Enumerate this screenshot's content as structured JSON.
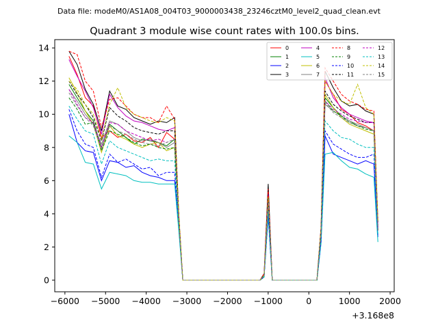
{
  "chart_data": {
    "type": "line",
    "suptitle": "Data file: modeM0/AS1A08_004T03_9000003438_23246cztM0_level2_quad_clean.evt",
    "title": "Quadrant 3 module wise count rates with 100.0s bins.",
    "xlabel": "",
    "ylabel": "",
    "x_offset_label": "+3.168e8",
    "xlim": [
      -6250,
      2100
    ],
    "ylim": [
      -0.7,
      14.5
    ],
    "xticks": [
      -6000,
      -5000,
      -4000,
      -3000,
      -2000,
      -1000,
      0,
      1000,
      2000
    ],
    "yticks": [
      0,
      2,
      4,
      6,
      8,
      10,
      12,
      14
    ],
    "grid": false,
    "legend_placement": "top-right",
    "x": [
      -5900,
      -5700,
      -5500,
      -5300,
      -5100,
      -4900,
      -4700,
      -4500,
      -4300,
      -4100,
      -3900,
      -3700,
      -3500,
      -3300,
      -3200,
      -3100,
      -1200,
      -1100,
      -1000,
      -900,
      200,
      300,
      400,
      600,
      800,
      1000,
      1200,
      1400,
      1600,
      1700
    ],
    "series": [
      {
        "name": "0",
        "color": "#ff0000",
        "dash": false,
        "values": [
          13.5,
          12.4,
          11.0,
          10.5,
          8.6,
          9.0,
          8.6,
          8.8,
          8.4,
          8.3,
          8.6,
          8.0,
          8.9,
          8.5,
          3.5,
          0,
          0,
          0.3,
          5.0,
          0,
          0,
          3.0,
          12.0,
          11.2,
          10.3,
          10.0,
          9.5,
          9.3,
          9.0,
          3.0
        ]
      },
      {
        "name": "1",
        "color": "#008000",
        "dash": false,
        "values": [
          11.8,
          11.0,
          10.2,
          9.6,
          8.0,
          9.4,
          9.0,
          8.6,
          8.2,
          8.5,
          8.4,
          8.3,
          8.1,
          8.5,
          3.5,
          0,
          0,
          0.2,
          4.6,
          0,
          0,
          2.8,
          11.0,
          10.4,
          9.9,
          9.6,
          9.3,
          9.2,
          9.0,
          3.0
        ]
      },
      {
        "name": "2",
        "color": "#0000ff",
        "dash": false,
        "values": [
          10.0,
          8.3,
          7.8,
          7.7,
          6.0,
          7.2,
          7.1,
          6.8,
          6.9,
          6.5,
          6.3,
          6.2,
          6.0,
          6.0,
          3.2,
          0,
          0,
          0.2,
          4.2,
          0,
          0,
          2.3,
          8.7,
          7.6,
          7.4,
          7.2,
          7.0,
          7.2,
          7.0,
          2.6
        ]
      },
      {
        "name": "3",
        "color": "#000000",
        "dash": false,
        "values": [
          13.8,
          13.0,
          11.5,
          10.6,
          9.0,
          11.4,
          10.5,
          10.3,
          9.8,
          9.6,
          9.4,
          9.6,
          9.5,
          9.8,
          4.0,
          0,
          0,
          0.4,
          5.8,
          0,
          0,
          3.2,
          12.6,
          11.6,
          10.8,
          10.5,
          10.6,
          10.2,
          10.0,
          3.5
        ]
      },
      {
        "name": "4",
        "color": "#bf00bf",
        "dash": false,
        "values": [
          13.3,
          12.3,
          11.4,
          10.4,
          8.8,
          11.2,
          10.4,
          9.9,
          9.6,
          9.5,
          9.3,
          9.1,
          9.0,
          9.2,
          3.8,
          0,
          0,
          0.3,
          5.2,
          0,
          0,
          3.0,
          12.2,
          11.0,
          10.4,
          10.0,
          9.8,
          9.6,
          9.5,
          3.3
        ]
      },
      {
        "name": "5",
        "color": "#00bfbf",
        "dash": false,
        "values": [
          8.7,
          8.3,
          7.1,
          7.0,
          5.5,
          6.5,
          6.4,
          6.3,
          6.0,
          5.9,
          5.9,
          5.8,
          5.8,
          5.8,
          3.0,
          0,
          0,
          0.2,
          3.8,
          0,
          0,
          2.2,
          7.6,
          7.7,
          7.2,
          6.8,
          6.7,
          6.4,
          6.2,
          2.3
        ]
      },
      {
        "name": "6",
        "color": "#bfbf00",
        "dash": false,
        "values": [
          12.2,
          11.3,
          10.2,
          9.4,
          7.7,
          9.3,
          8.7,
          8.5,
          8.2,
          8.0,
          8.2,
          8.3,
          7.8,
          8.0,
          3.5,
          0,
          0,
          0.3,
          4.6,
          0,
          0,
          2.8,
          11.2,
          10.4,
          9.8,
          9.4,
          9.2,
          9.0,
          8.8,
          3.1
        ]
      },
      {
        "name": "7",
        "color": "#808080",
        "dash": false,
        "values": [
          11.5,
          10.8,
          10.0,
          9.4,
          8.2,
          9.6,
          9.4,
          9.0,
          8.6,
          8.4,
          8.5,
          8.3,
          8.0,
          8.3,
          3.6,
          0,
          0,
          0.3,
          4.8,
          0,
          0,
          2.9,
          10.6,
          10.2,
          9.9,
          9.6,
          9.4,
          9.2,
          9.0,
          3.1
        ]
      },
      {
        "name": "8",
        "color": "#ff0000",
        "dash": true,
        "values": [
          13.8,
          13.6,
          12.0,
          11.4,
          9.2,
          10.9,
          11.0,
          10.5,
          10.0,
          9.8,
          9.8,
          9.5,
          10.5,
          9.7,
          4.0,
          0,
          0,
          0.4,
          5.5,
          0,
          0,
          3.2,
          12.8,
          12.0,
          11.2,
          10.8,
          10.6,
          10.3,
          10.2,
          3.6
        ]
      },
      {
        "name": "9",
        "color": "#008000",
        "dash": true,
        "values": [
          11.0,
          10.3,
          9.4,
          9.5,
          7.8,
          9.0,
          8.8,
          8.6,
          8.3,
          8.1,
          8.2,
          8.0,
          7.9,
          8.0,
          3.4,
          0,
          0,
          0.2,
          4.5,
          0,
          0,
          2.7,
          10.8,
          10.2,
          9.9,
          9.5,
          9.3,
          9.1,
          9.0,
          3.0
        ]
      },
      {
        "name": "10",
        "color": "#0000ff",
        "dash": true,
        "values": [
          10.3,
          9.0,
          8.2,
          8.0,
          6.2,
          7.6,
          7.1,
          7.3,
          7.0,
          6.7,
          6.8,
          6.3,
          6.5,
          6.5,
          3.3,
          0,
          0,
          0.2,
          3.9,
          0,
          0,
          2.4,
          9.0,
          8.2,
          7.9,
          7.6,
          7.4,
          7.4,
          7.6,
          2.7
        ]
      },
      {
        "name": "11",
        "color": "#000000",
        "dash": true,
        "values": [
          12.0,
          11.2,
          10.6,
          9.8,
          8.4,
          10.4,
          9.9,
          9.6,
          9.2,
          9.0,
          8.9,
          8.8,
          9.0,
          9.0,
          3.7,
          0,
          0,
          0.3,
          5.0,
          0,
          0,
          3.0,
          11.4,
          10.6,
          10.2,
          9.9,
          9.7,
          9.5,
          9.5,
          3.2
        ]
      },
      {
        "name": "12",
        "color": "#bf00bf",
        "dash": true,
        "values": [
          11.5,
          10.6,
          9.8,
          9.5,
          8.0,
          9.5,
          9.4,
          9.0,
          8.8,
          8.6,
          8.4,
          8.5,
          8.3,
          8.5,
          3.5,
          0,
          0,
          0.3,
          4.8,
          0,
          0,
          2.9,
          10.8,
          10.3,
          10.0,
          9.7,
          9.6,
          9.5,
          9.5,
          3.1
        ]
      },
      {
        "name": "13",
        "color": "#00bfbf",
        "dash": true,
        "values": [
          10.5,
          9.7,
          9.0,
          8.8,
          7.0,
          8.4,
          8.0,
          7.8,
          7.6,
          7.4,
          7.2,
          7.3,
          7.2,
          7.2,
          3.2,
          0,
          0,
          0.2,
          4.2,
          0,
          0,
          2.6,
          9.6,
          9.0,
          8.6,
          8.5,
          8.2,
          8.0,
          8.0,
          2.8
        ]
      },
      {
        "name": "14",
        "color": "#bfbf00",
        "dash": true,
        "values": [
          12.0,
          11.5,
          10.6,
          10.0,
          8.5,
          10.6,
          11.6,
          10.4,
          10.0,
          9.8,
          9.6,
          9.5,
          9.8,
          9.6,
          4.0,
          0,
          0,
          0.3,
          5.0,
          0,
          0,
          3.1,
          12.0,
          11.2,
          10.8,
          10.6,
          11.8,
          10.4,
          10.0,
          3.6
        ]
      },
      {
        "name": "15",
        "color": "#808080",
        "dash": true,
        "values": [
          11.3,
          10.5,
          9.8,
          9.3,
          7.9,
          9.3,
          9.0,
          8.8,
          8.5,
          8.3,
          8.2,
          8.1,
          8.3,
          8.5,
          3.5,
          0,
          0,
          0.3,
          4.7,
          0,
          0,
          2.8,
          10.7,
          10.1,
          9.8,
          9.5,
          9.3,
          9.2,
          9.0,
          3.0
        ]
      }
    ]
  }
}
